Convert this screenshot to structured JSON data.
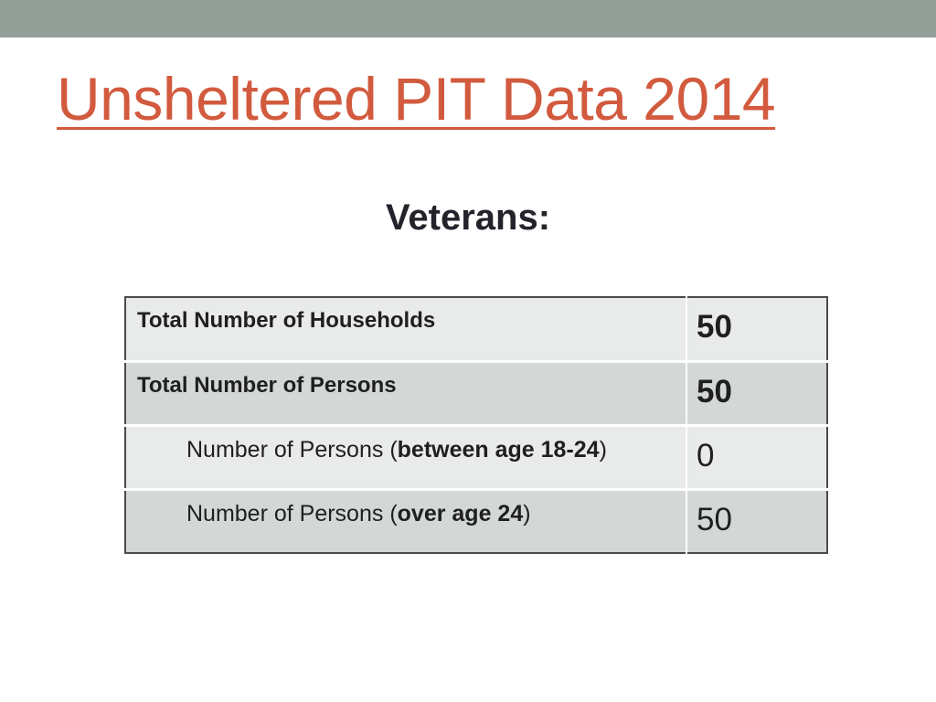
{
  "title": "Unsheltered PIT Data 2014",
  "subtitle": "Veterans:",
  "table": {
    "rows": [
      {
        "label": "Total Number of Households",
        "value": "50"
      },
      {
        "label": "Total Number of Persons",
        "value": "50"
      },
      {
        "label_prefix": "Number of Persons (",
        "label_emphasis": "between age 18-24",
        "label_suffix": ")",
        "value": "0"
      },
      {
        "label_prefix": "Number of Persons (",
        "label_emphasis": "over age 24",
        "label_suffix": ")",
        "value": "50"
      }
    ]
  },
  "colors": {
    "top_bar": "#939f98",
    "title": "#d25a3e",
    "row_light": "#e9eaea",
    "row_dark": "#d3d8d6"
  }
}
